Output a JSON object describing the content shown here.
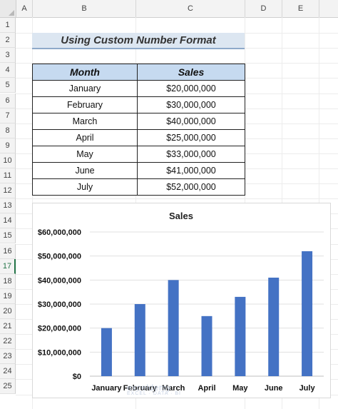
{
  "columns": [
    "A",
    "B",
    "C",
    "D",
    "E"
  ],
  "rows": [
    "1",
    "2",
    "3",
    "4",
    "5",
    "6",
    "7",
    "8",
    "9",
    "10",
    "11",
    "12",
    "13",
    "14",
    "15",
    "16",
    "17",
    "18",
    "19",
    "20",
    "21",
    "22",
    "23",
    "24",
    "25"
  ],
  "active_row": "17",
  "title": "Using Custom Number Format",
  "table": {
    "headers": [
      "Month",
      "Sales"
    ],
    "rows": [
      [
        "January",
        "$20,000,000"
      ],
      [
        "February",
        "$30,000,000"
      ],
      [
        "March",
        "$40,000,000"
      ],
      [
        "April",
        "$25,000,000"
      ],
      [
        "May",
        "$33,000,000"
      ],
      [
        "June",
        "$41,000,000"
      ],
      [
        "July",
        "$52,000,000"
      ]
    ]
  },
  "chart_data": {
    "type": "bar",
    "title": "Sales",
    "categories": [
      "January",
      "February",
      "March",
      "April",
      "May",
      "June",
      "July"
    ],
    "values": [
      20000000,
      30000000,
      40000000,
      25000000,
      33000000,
      41000000,
      52000000
    ],
    "ylim": [
      0,
      60000000
    ],
    "ytick_labels": [
      "$0",
      "$10,000,000",
      "$20,000,000",
      "$30,000,000",
      "$40,000,000",
      "$50,000,000",
      "$60,000,000"
    ],
    "grid": true,
    "bar_color": "#4472c4"
  },
  "watermark": {
    "brand": "exceldemy",
    "tagline": "EXCEL · DATA · BI"
  },
  "colors": {
    "title_fill": "#dce6f1",
    "header_fill": "#c6daf0",
    "active_row": "#217346"
  }
}
